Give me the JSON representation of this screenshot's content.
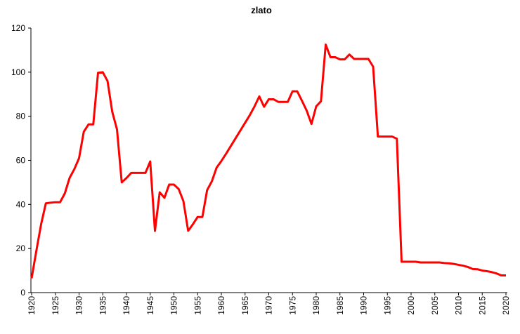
{
  "chart_data": {
    "type": "line",
    "title": "zlato",
    "x": [
      1920,
      1921,
      1922,
      1923,
      1924,
      1925,
      1926,
      1927,
      1928,
      1929,
      1930,
      1931,
      1932,
      1933,
      1934,
      1935,
      1936,
      1937,
      1938,
      1939,
      1940,
      1941,
      1942,
      1943,
      1944,
      1945,
      1946,
      1947,
      1948,
      1949,
      1950,
      1951,
      1952,
      1953,
      1954,
      1955,
      1956,
      1957,
      1958,
      1959,
      1960,
      1961,
      1962,
      1963,
      1964,
      1965,
      1966,
      1967,
      1968,
      1969,
      1970,
      1971,
      1972,
      1973,
      1974,
      1975,
      1976,
      1977,
      1978,
      1979,
      1980,
      1981,
      1982,
      1983,
      1984,
      1985,
      1986,
      1987,
      1988,
      1989,
      1990,
      1991,
      1992,
      1993,
      1994,
      1995,
      1996,
      1997,
      1998,
      1999,
      2000,
      2001,
      2002,
      2003,
      2004,
      2005,
      2006,
      2007,
      2008,
      2009,
      2010,
      2011,
      2012,
      2013,
      2014,
      2015,
      2016,
      2017,
      2018,
      2019,
      2020
    ],
    "series": [
      {
        "name": "zlato",
        "color": "#ff0000",
        "values": [
          6.5,
          19,
          31,
          40.5,
          40.8,
          41,
          41,
          45,
          52,
          56,
          61,
          73,
          76.3,
          76.3,
          99.7,
          100,
          96,
          82,
          74,
          50,
          52,
          54.3,
          54.3,
          54.3,
          54.3,
          59.5,
          28,
          45.5,
          43,
          49,
          49,
          47,
          41.5,
          28,
          31,
          34.3,
          34.3,
          46.5,
          50.5,
          56.7,
          59.7,
          63,
          66.5,
          70,
          73.5,
          77,
          80.5,
          84.5,
          89,
          84.3,
          87.7,
          87.7,
          86.5,
          86.5,
          86.5,
          91.3,
          91.3,
          87,
          82.5,
          76.5,
          84.5,
          86.8,
          112.5,
          106.8,
          106.8,
          105.8,
          105.8,
          108,
          106,
          106,
          106,
          106,
          102.5,
          70.8,
          70.8,
          70.8,
          70.8,
          69.8,
          14,
          14,
          14,
          14,
          13.7,
          13.7,
          13.7,
          13.7,
          13.7,
          13.4,
          13.3,
          13,
          12.6,
          12.2,
          11.6,
          10.7,
          10.6,
          10,
          9.7,
          9.3,
          8.7,
          7.8,
          7.8
        ]
      }
    ],
    "xlim": [
      1920,
      2020
    ],
    "xticks": [
      1920,
      1925,
      1930,
      1935,
      1940,
      1945,
      1950,
      1955,
      1960,
      1965,
      1970,
      1975,
      1980,
      1985,
      1990,
      1995,
      2000,
      2005,
      2010,
      2015,
      2020
    ],
    "ylim": [
      0,
      120
    ],
    "yticks": [
      0,
      20,
      40,
      60,
      80,
      100,
      120
    ],
    "grid": false
  }
}
